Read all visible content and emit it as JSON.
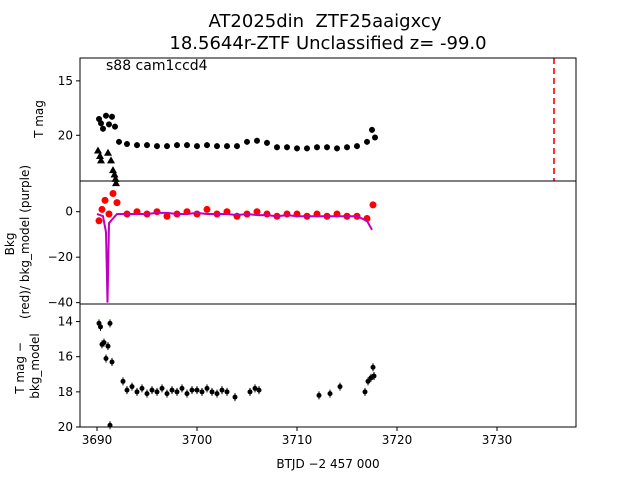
{
  "title_line1": "AT2025din  ZTF25aaigxcy",
  "title_line2": "18.5644r-ZTF Unclassified z= -99.0",
  "annotation": "s88 cam1ccd4",
  "xlabel": "BTJD −2 457 000",
  "colors": {
    "black": "#000000",
    "red": "#ff0000",
    "purple": "#bf00bf",
    "vline": "#ff0000"
  },
  "chart_data": [
    {
      "type": "scatter",
      "panel": "top",
      "ylabel": "T mag",
      "xlim": [
        3688.3,
        3737.9
      ],
      "ylim": [
        24.2,
        12.9
      ],
      "y_inverted": true,
      "xticks": [],
      "yticks": [
        15,
        20,
        25
      ],
      "ytick_labels": [
        "15",
        "20",
        "25"
      ],
      "vertical_line": {
        "x": 3735.7,
        "style": "dashed",
        "color": "red"
      },
      "series": [
        {
          "marker": "dot-with-errorbar",
          "points": [
            [
              3690.2,
              18.5
            ],
            [
              3690.4,
              18.9
            ],
            [
              3690.6,
              19.4
            ],
            [
              3690.9,
              18.2
            ],
            [
              3691.2,
              19.0
            ],
            [
              3691.5,
              18.3
            ],
            [
              3691.8,
              19.2
            ],
            [
              3692.2,
              20.6
            ],
            [
              3693,
              20.8
            ],
            [
              3694,
              20.9
            ],
            [
              3695,
              20.9
            ],
            [
              3696,
              21.0
            ],
            [
              3697,
              21.0
            ],
            [
              3698,
              20.9
            ],
            [
              3699,
              20.9
            ],
            [
              3700,
              21.0
            ],
            [
              3701,
              20.9
            ],
            [
              3702,
              21.0
            ],
            [
              3703,
              21.0
            ],
            [
              3704,
              21.0
            ],
            [
              3705,
              20.6
            ],
            [
              3706,
              20.5
            ],
            [
              3707,
              20.7
            ],
            [
              3708,
              21.1
            ],
            [
              3709,
              21.1
            ],
            [
              3710,
              21.2
            ],
            [
              3711,
              21.2
            ],
            [
              3712,
              21.1
            ],
            [
              3713,
              21.1
            ],
            [
              3714,
              21.2
            ],
            [
              3715,
              21.1
            ],
            [
              3716,
              21.0
            ],
            [
              3717,
              20.6
            ],
            [
              3717.5,
              19.5
            ],
            [
              3717.8,
              20.2
            ]
          ]
        },
        {
          "marker": "triangle-up",
          "points": [
            [
              3690.1,
              21.4
            ],
            [
              3690.3,
              21.9
            ],
            [
              3690.4,
              22.3
            ],
            [
              3691.1,
              21.6
            ],
            [
              3691.4,
              22.3
            ],
            [
              3691.6,
              23.2
            ],
            [
              3691.75,
              23.6
            ],
            [
              3691.85,
              24.0
            ],
            [
              3691.9,
              24.4
            ]
          ]
        }
      ]
    },
    {
      "type": "scatter",
      "panel": "middle",
      "ylabel": "Bkg (red)/ bkg_model (purple)",
      "xlim": [
        3688.3,
        3737.9
      ],
      "ylim": [
        -40.6,
        13.5
      ],
      "xticks": [],
      "yticks": [
        0,
        -20,
        -40
      ],
      "ytick_labels": [
        "0",
        "−20",
        "−40"
      ],
      "series": [
        {
          "name": "Bkg",
          "color": "red",
          "points": [
            [
              3690.2,
              -4
            ],
            [
              3690.5,
              1
            ],
            [
              3690.8,
              5
            ],
            [
              3691.2,
              -1
            ],
            [
              3691.6,
              8
            ],
            [
              3692,
              4
            ],
            [
              3693,
              -1
            ],
            [
              3694,
              0
            ],
            [
              3695,
              -1
            ],
            [
              3696,
              0
            ],
            [
              3697,
              -2
            ],
            [
              3698,
              -1
            ],
            [
              3699,
              0
            ],
            [
              3700,
              -1
            ],
            [
              3701,
              1
            ],
            [
              3702,
              -1
            ],
            [
              3703,
              0
            ],
            [
              3704,
              -2
            ],
            [
              3705,
              -1
            ],
            [
              3706,
              0
            ],
            [
              3707,
              -1
            ],
            [
              3708,
              -2
            ],
            [
              3709,
              -1
            ],
            [
              3710,
              -1
            ],
            [
              3711,
              -2
            ],
            [
              3712,
              -1
            ],
            [
              3713,
              -2
            ],
            [
              3714,
              -1
            ],
            [
              3715,
              -2
            ],
            [
              3716,
              -2
            ],
            [
              3717,
              -3
            ],
            [
              3717.6,
              3
            ]
          ]
        },
        {
          "name": "bkg_model",
          "color": "purple",
          "points": [
            [
              3690.0,
              -1
            ],
            [
              3690.6,
              -2
            ],
            [
              3690.9,
              -9
            ],
            [
              3691.05,
              -40
            ],
            [
              3691.2,
              -5
            ],
            [
              3691.6,
              -3
            ],
            [
              3692,
              -1
            ],
            [
              3693,
              -1
            ],
            [
              3694,
              -1
            ],
            [
              3695,
              -1
            ],
            [
              3696,
              -0.5
            ],
            [
              3697,
              -0.5
            ],
            [
              3698,
              -1
            ],
            [
              3699,
              -1
            ],
            [
              3700,
              -0.5
            ],
            [
              3701,
              -1
            ],
            [
              3702,
              -1
            ],
            [
              3703,
              -1
            ],
            [
              3704,
              -1.5
            ],
            [
              3705,
              -1
            ],
            [
              3706,
              -1.5
            ],
            [
              3707,
              -1.5
            ],
            [
              3708,
              -2
            ],
            [
              3709,
              -1.5
            ],
            [
              3710,
              -2
            ],
            [
              3711,
              -2
            ],
            [
              3712,
              -2
            ],
            [
              3713,
              -2
            ],
            [
              3714,
              -2
            ],
            [
              3715,
              -2
            ],
            [
              3716,
              -2
            ],
            [
              3717,
              -4
            ],
            [
              3717.5,
              -8
            ]
          ]
        }
      ]
    },
    {
      "type": "scatter",
      "panel": "bottom",
      "ylabel": "T mag − bkg_model",
      "xlim": [
        3688.3,
        3737.9
      ],
      "ylim": [
        20,
        13
      ],
      "y_inverted": true,
      "xticks": [
        3690,
        3700,
        3710,
        3720,
        3730
      ],
      "xtick_labels": [
        "3690",
        "3700",
        "3710",
        "3720",
        "3730"
      ],
      "yticks": [
        14,
        16,
        18,
        20
      ],
      "ytick_labels": [
        "14",
        "16",
        "18",
        "20"
      ],
      "series": [
        {
          "marker": "dot-with-errorbar",
          "points": [
            [
              3690.2,
              14.1
            ],
            [
              3690.35,
              14.3
            ],
            [
              3690.5,
              15.3
            ],
            [
              3690.7,
              15.2
            ],
            [
              3690.9,
              16.1
            ],
            [
              3691.1,
              15.4
            ],
            [
              3691.3,
              14.1
            ],
            [
              3691.5,
              16.3
            ],
            [
              3691.3,
              19.9
            ],
            [
              3692.6,
              17.4
            ],
            [
              3693,
              17.9
            ],
            [
              3693.5,
              17.7
            ],
            [
              3694,
              18.0
            ],
            [
              3694.5,
              17.8
            ],
            [
              3695,
              18.1
            ],
            [
              3695.5,
              17.9
            ],
            [
              3696,
              18.0
            ],
            [
              3696.5,
              17.8
            ],
            [
              3697,
              18.1
            ],
            [
              3697.5,
              17.9
            ],
            [
              3698,
              18.0
            ],
            [
              3698.5,
              17.8
            ],
            [
              3699,
              18.1
            ],
            [
              3699.5,
              17.9
            ],
            [
              3700,
              17.9
            ],
            [
              3700.5,
              18.0
            ],
            [
              3701,
              17.8
            ],
            [
              3701.5,
              18.0
            ],
            [
              3702,
              18.1
            ],
            [
              3702.5,
              17.9
            ],
            [
              3703,
              18.0
            ],
            [
              3703.8,
              18.3
            ],
            [
              3705.3,
              18.0
            ],
            [
              3705.8,
              17.8
            ],
            [
              3706.2,
              17.9
            ],
            [
              3712.2,
              18.2
            ],
            [
              3713.3,
              18.1
            ],
            [
              3714.3,
              17.7
            ],
            [
              3716.8,
              18.0
            ],
            [
              3717.1,
              17.4
            ],
            [
              3717.4,
              17.2
            ],
            [
              3717.6,
              16.6
            ],
            [
              3717.7,
              17.1
            ]
          ]
        }
      ]
    }
  ]
}
